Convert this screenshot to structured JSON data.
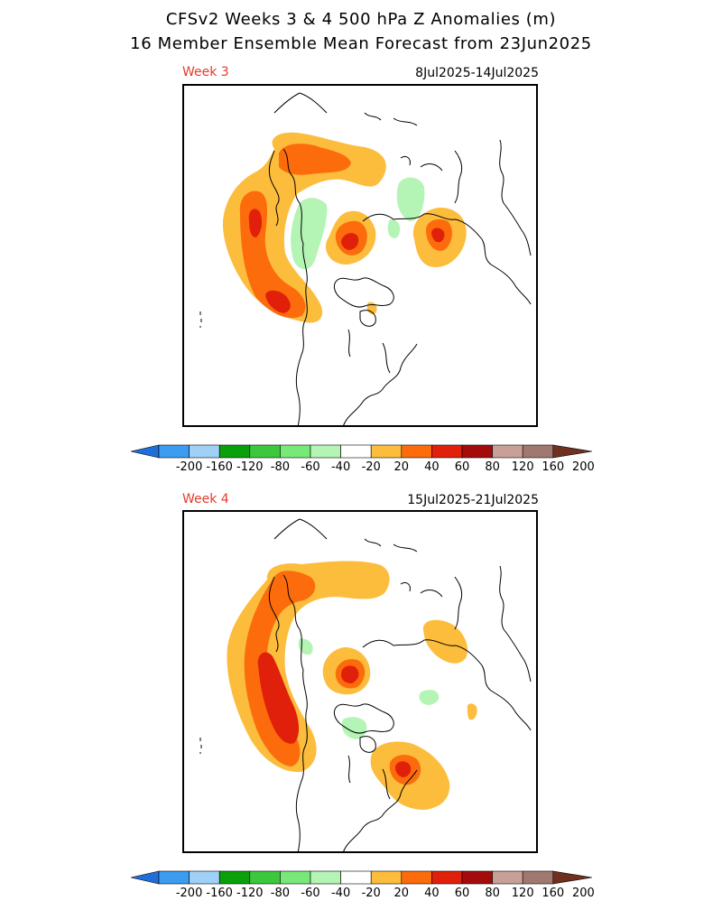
{
  "title": {
    "line1": "CFSv2 Weeks 3 & 4 500 hPa Z Anomalies (m)",
    "line2": "16 Member Ensemble Mean Forecast from 23Jun2025"
  },
  "panels": [
    {
      "label": "Week 3",
      "dates": "8Jul2025-14Jul2025"
    },
    {
      "label": "Week 4",
      "dates": "15Jul2025-21Jul2025"
    }
  ],
  "colorbar": {
    "labels": [
      "-200",
      "-160",
      "-120",
      "-80",
      "-60",
      "-40",
      "-20",
      "20",
      "40",
      "60",
      "80",
      "120",
      "160",
      "200"
    ],
    "colors": [
      "#1e6fd9",
      "#3c9cf0",
      "#9ed0f8",
      "#0aa00a",
      "#3cc83c",
      "#78e878",
      "#b4f4b4",
      "#ffffff",
      "#fcbc3c",
      "#fc6c0c",
      "#e0200a",
      "#a40c0c",
      "#c8a098",
      "#a07870",
      "#703020"
    ]
  },
  "anomaly_colors": {
    "neg20": "#b4f4b4",
    "pos20": "#fcbc3c",
    "pos40": "#fc6c0c",
    "pos60": "#e0200a"
  }
}
